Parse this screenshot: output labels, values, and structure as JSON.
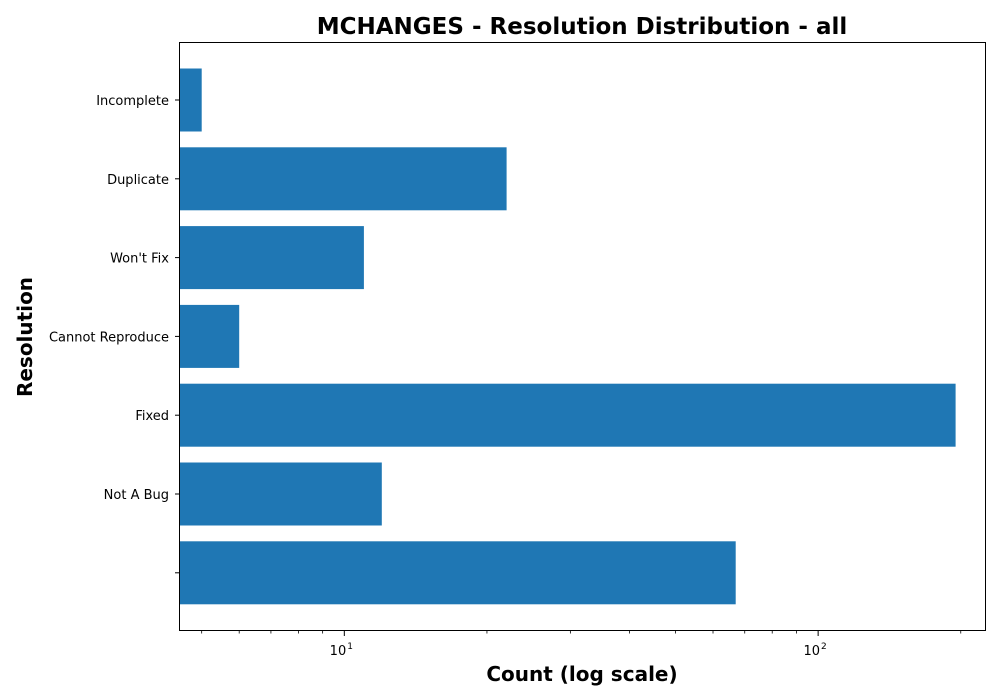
{
  "chart_data": {
    "type": "bar",
    "orientation": "horizontal",
    "title": "MCHANGES - Resolution Distribution - all",
    "xlabel": "Count (log scale)",
    "ylabel": "Resolution",
    "x_scale": "log",
    "xlim": [
      4.5,
      225
    ],
    "x_ticks": [
      {
        "value": 10,
        "base": "10",
        "exp": "1"
      },
      {
        "value": 100,
        "base": "10",
        "exp": "2"
      }
    ],
    "categories": [
      "Incomplete",
      "Duplicate",
      "Won't Fix",
      "Cannot Reproduce",
      "Fixed",
      "Not A Bug",
      ""
    ],
    "values": [
      5,
      22,
      11,
      6,
      195,
      12,
      67
    ],
    "bar_color": "#1f77b4",
    "grid": false
  }
}
